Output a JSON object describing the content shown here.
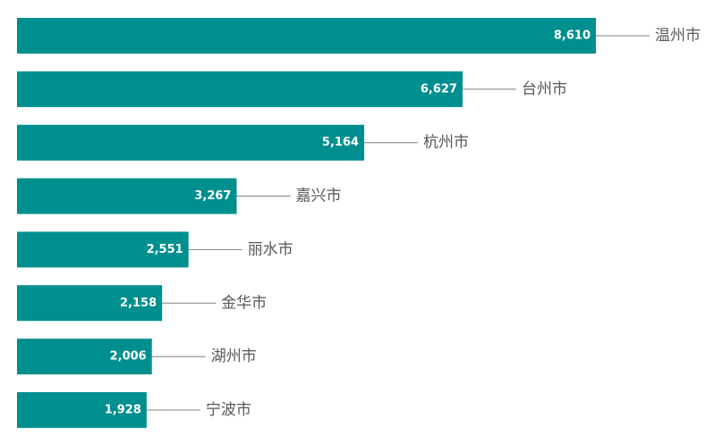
{
  "chart_data": {
    "type": "bar",
    "orientation": "horizontal",
    "categories": [
      "温州市",
      "台州市",
      "杭州市",
      "嘉兴市",
      "丽水市",
      "金华市",
      "湖州市",
      "宁波市"
    ],
    "values": [
      8610,
      6627,
      5164,
      3267,
      2551,
      2158,
      2006,
      1928
    ],
    "value_labels": [
      "8,610",
      "6,627",
      "5,164",
      "3,267",
      "2,551",
      "2,158",
      "2,006",
      "1,928"
    ],
    "bar_color": "#008f8f",
    "title": "",
    "xlabel": "",
    "ylabel": "",
    "grid": false,
    "legend": false
  }
}
